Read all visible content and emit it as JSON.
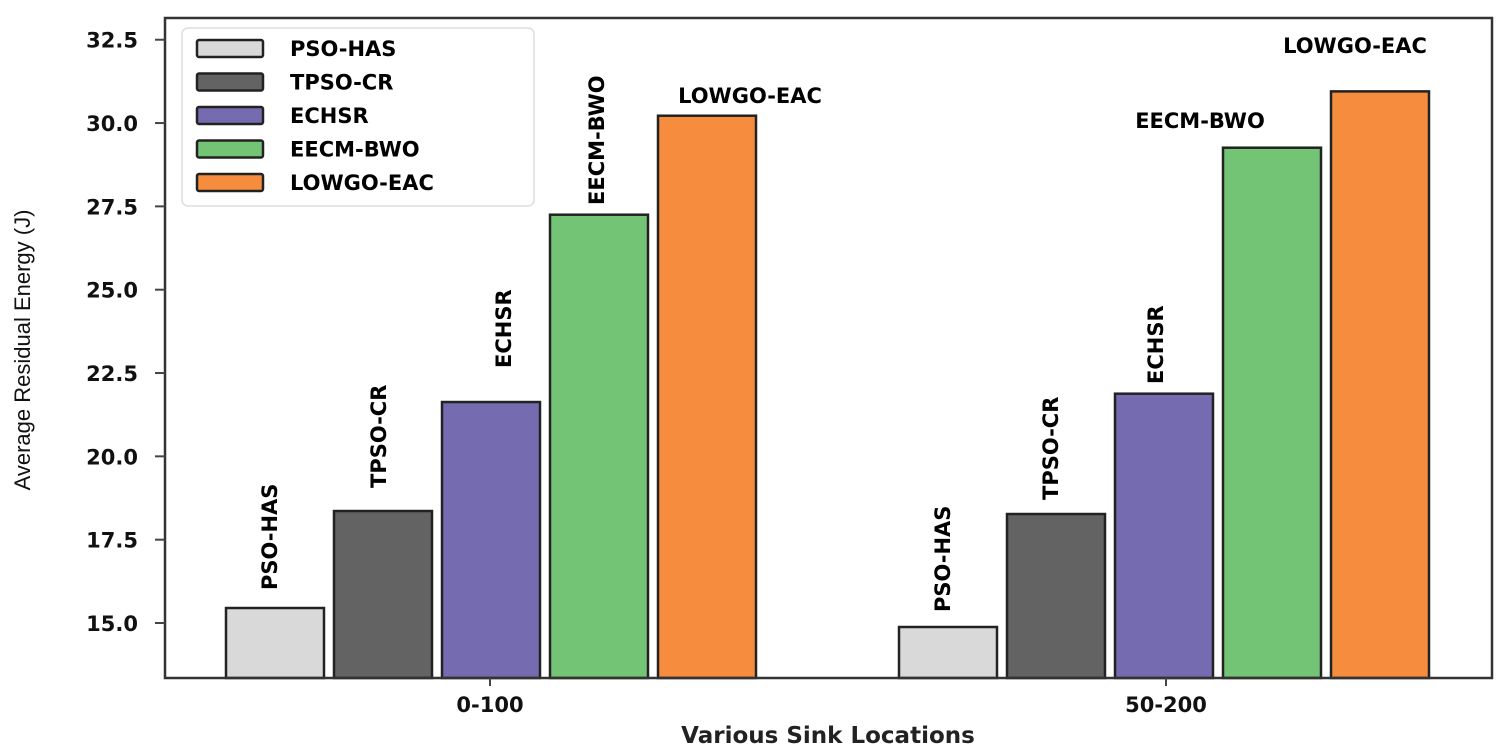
{
  "chart_data": {
    "type": "bar",
    "title": "",
    "xlabel": "Various Sink Locations",
    "ylabel": "Average Residual Energy (J)",
    "categories": [
      "0-100",
      "50-200"
    ],
    "ylim": [
      13.3,
      33.2
    ],
    "yticks": [
      "15.0",
      "17.5",
      "20.0",
      "22.5",
      "25.0",
      "27.5",
      "30.0",
      "32.5"
    ],
    "grid": false,
    "legend_position": "upper left",
    "series": [
      {
        "name": "PSO-HAS",
        "color": "#d9d9d9",
        "values": [
          15.45,
          14.88
        ]
      },
      {
        "name": "TPSO-CR",
        "color": "#636363",
        "values": [
          18.36,
          18.27
        ]
      },
      {
        "name": "ECHSR",
        "color": "#756bb1",
        "values": [
          21.63,
          21.88
        ]
      },
      {
        "name": "EECM-BWO",
        "color": "#74c476",
        "values": [
          27.25,
          29.26
        ]
      },
      {
        "name": "LOWGO-EAC",
        "color": "#f68c3d",
        "values": [
          30.22,
          30.95
        ]
      }
    ],
    "annotations": [
      {
        "text": "PSO-HAS",
        "category": "0-100",
        "rotated": true
      },
      {
        "text": "TPSO-CR",
        "category": "0-100",
        "rotated": true
      },
      {
        "text": "ECHSR",
        "category": "0-100",
        "rotated": true
      },
      {
        "text": "EECM-BWO",
        "category": "0-100",
        "rotated": true
      },
      {
        "text": "LOWGO-EAC",
        "category": "0-100",
        "rotated": false
      },
      {
        "text": "PSO-HAS",
        "category": "50-200",
        "rotated": true
      },
      {
        "text": "TPSO-CR",
        "category": "50-200",
        "rotated": true
      },
      {
        "text": "ECHSR",
        "category": "50-200",
        "rotated": true
      },
      {
        "text": "EECM-BWO",
        "category": "50-200",
        "rotated": false
      },
      {
        "text": "LOWGO-EAC",
        "category": "50-200",
        "rotated": false
      }
    ]
  }
}
